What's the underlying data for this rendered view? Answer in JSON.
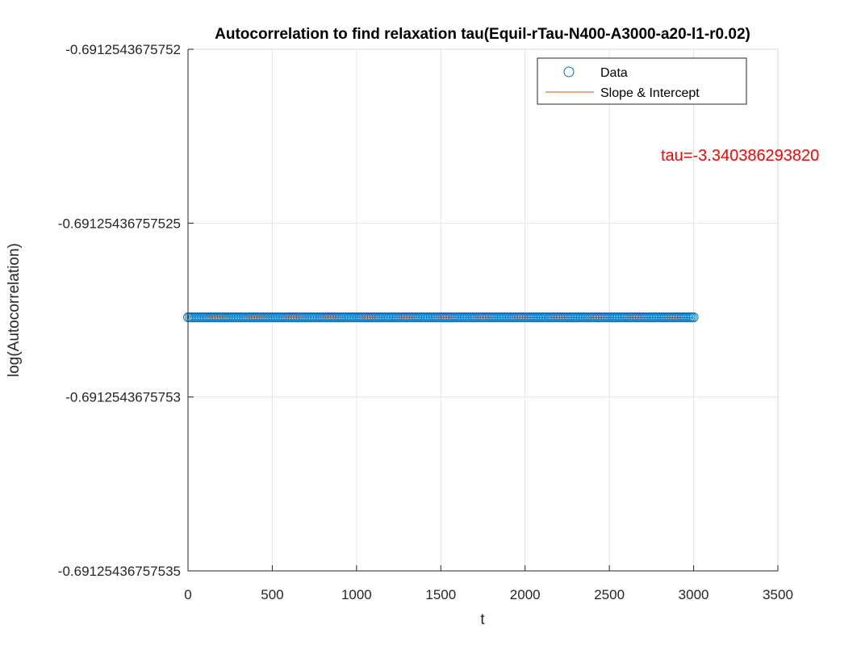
{
  "chart_data": {
    "type": "scatter",
    "title": "Autocorrelation to find relaxation tau(Equil-rTau-N400-A3000-a20-l1-r0.02)",
    "xlabel": "t",
    "ylabel": "log(Autocorrelation)",
    "xlim": [
      0,
      3500
    ],
    "x_ticks": [
      0,
      500,
      1000,
      1500,
      2000,
      2500,
      3000,
      3500
    ],
    "x_tick_labels": [
      "0",
      "500",
      "1000",
      "1500",
      "2000",
      "2500",
      "3000",
      "3500"
    ],
    "y_tick_labels": [
      "-0.6912543675752",
      "-0.69125436757525",
      "-0.6912543675753",
      "-0.69125436757535"
    ],
    "grid": true,
    "legend_position": "top-right",
    "series": [
      {
        "name": "Data",
        "kind": "markers",
        "marker": "circle",
        "color": "#0072BD",
        "x_range": [
          0,
          3000
        ],
        "x_step": 10,
        "y_position_fraction": 0.5138
      },
      {
        "name": "Slope & Intercept",
        "kind": "line",
        "color": "#D95319",
        "x": [
          0,
          3000
        ],
        "y_position_fraction": [
          0.5128,
          0.5148
        ]
      }
    ],
    "annotation": {
      "text": "tau=-3.340386293820",
      "color": "#ff0000"
    }
  }
}
